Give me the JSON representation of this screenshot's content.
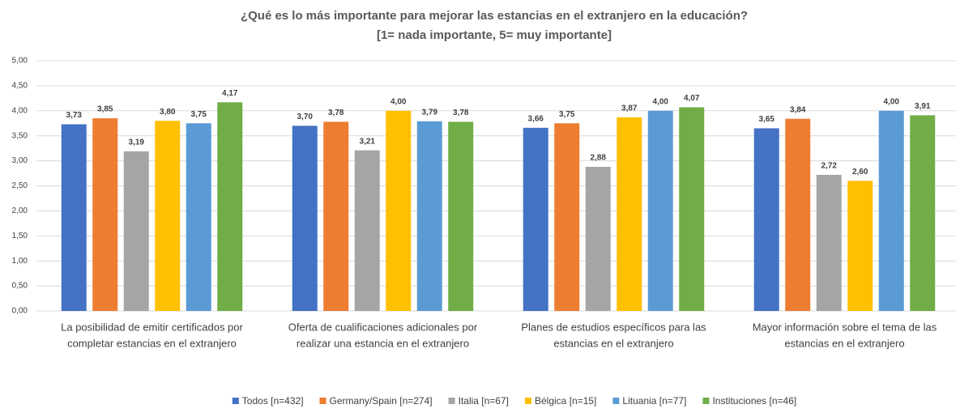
{
  "chart_data": {
    "type": "bar",
    "title": "¿Qué es lo más importante para mejorar las estancias en el extranjero en la educación?",
    "subtitle": "[1= nada importante, 5= muy importante]",
    "categories": [
      [
        "La posibilidad de emitir certificados por",
        "completar estancias en el extranjero"
      ],
      [
        "Oferta de cualificaciones adicionales por",
        "realizar una estancia en el extranjero"
      ],
      [
        "Planes de estudios específicos para las",
        "estancias en el extranjero"
      ],
      [
        "Mayor información sobre el tema de las",
        "estancias en el extranjero"
      ]
    ],
    "series": [
      {
        "name": "Todos [n=432]",
        "color": "#4472c4",
        "values": [
          3.73,
          3.7,
          3.66,
          3.65
        ],
        "value_labels": [
          "3,73",
          "3,70",
          "3,66",
          "3,65"
        ]
      },
      {
        "name": "Germany/Spain [n=274]",
        "color": "#ed7d31",
        "values": [
          3.85,
          3.78,
          3.75,
          3.84
        ],
        "value_labels": [
          "3,85",
          "3,78",
          "3,75",
          "3,84"
        ]
      },
      {
        "name": "Italia [n=67]",
        "color": "#a5a5a5",
        "values": [
          3.19,
          3.21,
          2.88,
          2.72
        ],
        "value_labels": [
          "3,19",
          "3,21",
          "2,88",
          "2,72"
        ]
      },
      {
        "name": "Bélgica [n=15]",
        "color": "#ffc000",
        "values": [
          3.8,
          4.0,
          3.87,
          2.6
        ],
        "value_labels": [
          "3,80",
          "4,00",
          "3,87",
          "2,60"
        ]
      },
      {
        "name": "Lituania [n=77]",
        "color": "#5b9bd5",
        "values": [
          3.75,
          3.79,
          4.0,
          4.0
        ],
        "value_labels": [
          "3,75",
          "3,79",
          "4,00",
          "4,00"
        ]
      },
      {
        "name": "Instituciones [n=46]",
        "color": "#70ad47",
        "values": [
          4.17,
          3.78,
          4.07,
          3.91
        ],
        "value_labels": [
          "4,17",
          "3,78",
          "4,07",
          "3,91"
        ]
      }
    ],
    "ylim": [
      0,
      5
    ],
    "yticks": [
      {
        "value": 0,
        "label": "0,00"
      },
      {
        "value": 0.5,
        "label": "0,50"
      },
      {
        "value": 1,
        "label": "1,00"
      },
      {
        "value": 1.5,
        "label": "1,50"
      },
      {
        "value": 2,
        "label": "2,00"
      },
      {
        "value": 2.5,
        "label": "2,50"
      },
      {
        "value": 3,
        "label": "3,00"
      },
      {
        "value": 3.5,
        "label": "3,50"
      },
      {
        "value": 4,
        "label": "4,00"
      },
      {
        "value": 4.5,
        "label": "4,50"
      },
      {
        "value": 5,
        "label": "5,00"
      }
    ],
    "grid": true,
    "legend": "bottom"
  }
}
